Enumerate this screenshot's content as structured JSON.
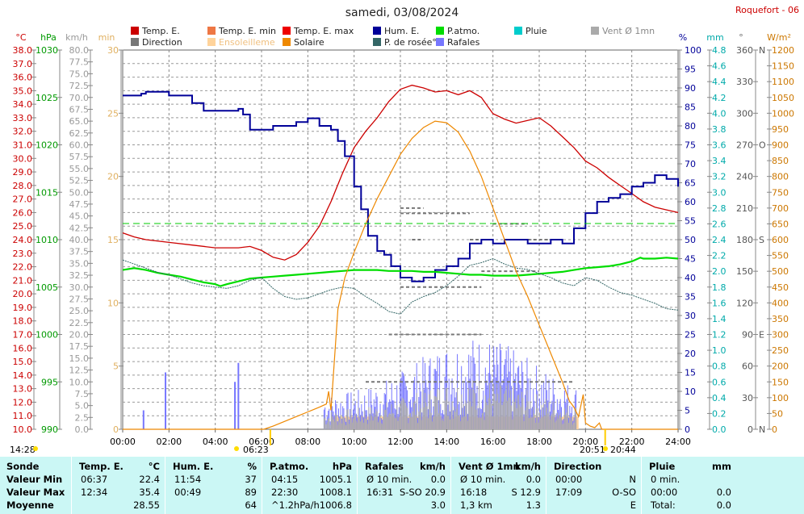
{
  "title": "samedi, 03/08/2024",
  "station": "Roquefort - 06",
  "colors": {
    "temp": "#cc0000",
    "temp_min": "#ee7744",
    "temp_max": "#ee0000",
    "direction": "#777777",
    "sunshine": "#ffd39b",
    "solar": "#ee8800",
    "humidity": "#000099",
    "pressure": "#00dd00",
    "dew_point": "#336666",
    "rain": "#00cccc",
    "wind": "#aaaaaa",
    "gusts": "#7777ff"
  },
  "legend": [
    {
      "label": "Temp. E.",
      "color": "#cc0000"
    },
    {
      "label": "Temp. E. min",
      "color": "#ee7744"
    },
    {
      "label": "Temp. E. max",
      "color": "#ee0000"
    },
    {
      "label": "Hum. E.",
      "color": "#000099"
    },
    {
      "label": "P.atmo.",
      "color": "#00dd00"
    },
    {
      "label": "Pluie",
      "color": "#00cccc"
    },
    {
      "label": "Vent Ø 1mn",
      "color": "#aaaaaa"
    },
    {
      "label": "Direction",
      "color": "#777777"
    },
    {
      "label": "Ensoleilleme",
      "color": "#ffd39b"
    },
    {
      "label": "Solaire",
      "color": "#ee8800"
    },
    {
      "label": "P. de rosée°",
      "color": "#336666"
    },
    {
      "label": "Rafales",
      "color": "#7777ff"
    }
  ],
  "axis_units": {
    "temp": "°C",
    "pressure": "hPa",
    "wind": "km/h",
    "sunshine": "min",
    "humidity": "%",
    "rain": "mm",
    "direction": "°",
    "solar": "W/m²"
  },
  "sun": {
    "sunrise": "06:23",
    "sunset": "20:51",
    "left_marker": "14:28",
    "right_marker": "20:44"
  },
  "chart_data": {
    "type": "line",
    "x_ticks": [
      "00:00",
      "02:00",
      "04:00",
      "06:00",
      "08:00",
      "10:00",
      "12:00",
      "14:00",
      "16:00",
      "18:00",
      "20:00",
      "22:00",
      "24:00"
    ],
    "axes": {
      "temp": {
        "min": 10.0,
        "max": 38.0,
        "step": 1.0
      },
      "pressure": {
        "min": 990,
        "max": 1030,
        "step": 5
      },
      "wind": {
        "min": 0.0,
        "max": 80.0,
        "step": 2.5
      },
      "sunshine": {
        "min": 0,
        "max": 30,
        "step": 5
      },
      "humidity": {
        "min": 0,
        "max": 100,
        "step": 5
      },
      "rain": {
        "min": 0.0,
        "max": 4.8,
        "step": 0.2
      },
      "direction": {
        "min": 0,
        "max": 360,
        "step": 30,
        "labels": {
          "0": "N",
          "90": "E",
          "180": "S",
          "270": "O",
          "360": "N"
        }
      },
      "solar": {
        "min": 0,
        "max": 1200,
        "step": 50
      }
    },
    "series": [
      {
        "name": "Temp. E.",
        "axis": "temp",
        "x": [
          0,
          0.5,
          1,
          2,
          3,
          4,
          5,
          5.5,
          6,
          6.5,
          7,
          7.5,
          8,
          8.5,
          9,
          9.5,
          10,
          10.5,
          11,
          11.5,
          12,
          12.5,
          13,
          13.5,
          14,
          14.5,
          15,
          15.5,
          16,
          16.5,
          17,
          17.5,
          18,
          18.5,
          19,
          19.5,
          20,
          20.5,
          21,
          21.5,
          22,
          22.5,
          23,
          23.5,
          24
        ],
        "y": [
          24.5,
          24.2,
          24.0,
          23.8,
          23.6,
          23.4,
          23.4,
          23.5,
          23.2,
          22.7,
          22.5,
          22.9,
          23.8,
          25.0,
          26.8,
          28.9,
          30.8,
          32.0,
          33.0,
          34.2,
          35.1,
          35.4,
          35.2,
          34.9,
          35.0,
          34.7,
          35.0,
          34.5,
          33.3,
          32.9,
          32.6,
          32.8,
          33.0,
          32.4,
          31.6,
          30.8,
          29.8,
          29.3,
          28.6,
          28.0,
          27.4,
          26.8,
          26.4,
          26.2,
          26.0
        ]
      },
      {
        "name": "Hum. E.",
        "axis": "humidity",
        "x": [
          0,
          0.5,
          0.8,
          1,
          1.5,
          2,
          2.5,
          3,
          3.5,
          4,
          4.5,
          5,
          5.2,
          5.5,
          6,
          6.5,
          7,
          7.5,
          8,
          8.5,
          9,
          9.3,
          9.6,
          10,
          10.3,
          10.6,
          11,
          11.3,
          11.6,
          12,
          12.5,
          13,
          13.5,
          14,
          14.5,
          15,
          15.5,
          16,
          16.5,
          17,
          17.5,
          18,
          18.5,
          19,
          19.5,
          20,
          20.5,
          21,
          21.5,
          22,
          22.5,
          23,
          23.5,
          24
        ],
        "y": [
          88,
          88,
          88.5,
          89,
          89,
          88,
          88,
          86,
          84,
          84,
          84,
          84.5,
          83,
          79,
          79,
          80,
          80,
          81,
          82,
          80,
          79,
          76,
          72,
          64,
          58,
          51,
          47,
          46,
          43,
          40,
          39,
          40,
          42,
          43,
          45,
          49,
          50,
          49,
          50,
          50,
          49,
          49,
          50,
          49,
          53,
          57,
          60,
          61,
          62,
          64,
          65,
          67,
          66,
          64
        ]
      },
      {
        "name": "P.atmo.",
        "axis": "pressure",
        "x": [
          0,
          0.5,
          1,
          1.5,
          2,
          2.5,
          3,
          3.5,
          4,
          4.22,
          4.5,
          5,
          5.5,
          6,
          6.5,
          7,
          7.5,
          8,
          8.5,
          9,
          9.5,
          10,
          10.5,
          11,
          11.5,
          12,
          12.5,
          13,
          13.5,
          14,
          14.5,
          15,
          15.5,
          16,
          16.5,
          17,
          17.5,
          18,
          18.5,
          19,
          19.5,
          20,
          20.5,
          21,
          21.5,
          22,
          22.37,
          22.5,
          23,
          23.5,
          24
        ],
        "y": [
          1006.8,
          1007.0,
          1006.8,
          1006.5,
          1006.3,
          1006.1,
          1005.8,
          1005.5,
          1005.3,
          1005.1,
          1005.3,
          1005.6,
          1005.9,
          1006.0,
          1006.1,
          1006.2,
          1006.3,
          1006.4,
          1006.5,
          1006.6,
          1006.7,
          1006.8,
          1006.8,
          1006.8,
          1006.7,
          1006.7,
          1006.7,
          1006.6,
          1006.6,
          1006.5,
          1006.4,
          1006.3,
          1006.3,
          1006.2,
          1006.2,
          1006.2,
          1006.3,
          1006.4,
          1006.5,
          1006.6,
          1006.8,
          1007.0,
          1007.1,
          1007.2,
          1007.4,
          1007.7,
          1008.1,
          1008.0,
          1008.0,
          1008.1,
          1008.0
        ]
      },
      {
        "name": "P. de rosée°",
        "axis": "temp",
        "x": [
          0,
          0.5,
          1,
          1.5,
          2,
          2.5,
          3,
          3.5,
          4,
          4.5,
          5,
          5.5,
          6,
          6.5,
          7,
          7.5,
          8,
          8.5,
          9,
          9.5,
          10,
          10.5,
          11,
          11.5,
          12,
          12.5,
          13,
          13.5,
          14,
          14.5,
          15,
          15.5,
          16,
          16.5,
          17,
          17.5,
          18,
          18.5,
          19,
          19.5,
          20,
          20.5,
          21,
          21.5,
          22,
          22.5,
          23,
          23.5,
          24
        ],
        "y": [
          22.5,
          22.2,
          21.9,
          21.6,
          21.4,
          21.1,
          20.8,
          20.6,
          20.5,
          20.4,
          20.6,
          21.0,
          21.2,
          20.4,
          19.8,
          19.6,
          19.7,
          20.0,
          20.3,
          20.5,
          20.4,
          19.8,
          19.3,
          18.7,
          18.5,
          19.4,
          19.8,
          20.1,
          20.6,
          21.3,
          22.1,
          22.3,
          22.6,
          22.2,
          21.9,
          21.8,
          21.5,
          21.2,
          20.8,
          20.6,
          21.2,
          21.0,
          20.5,
          20.1,
          19.9,
          19.6,
          19.3,
          18.9,
          18.8
        ]
      },
      {
        "name": "Solaire",
        "axis": "solar",
        "x": [
          0,
          6.1,
          6.5,
          7,
          7.5,
          8,
          8.5,
          8.8,
          8.9,
          9.0,
          9.3,
          9.6,
          10,
          10.5,
          11,
          11.5,
          12,
          12.5,
          13,
          13.5,
          14,
          14.5,
          15,
          15.5,
          16,
          16.5,
          17,
          17.5,
          18,
          18.5,
          19,
          19.3,
          19.5,
          19.7,
          19.9,
          20.0,
          20.1,
          20.2,
          20.4,
          20.6,
          20.7,
          24
        ],
        "y": [
          0,
          0,
          10,
          25,
          40,
          55,
          70,
          80,
          120,
          60,
          380,
          480,
          560,
          650,
          730,
          800,
          870,
          920,
          955,
          975,
          970,
          940,
          880,
          800,
          700,
          600,
          500,
          420,
          330,
          240,
          150,
          90,
          70,
          40,
          110,
          20,
          15,
          10,
          5,
          20,
          0,
          0
        ]
      }
    ],
    "gusts_range": {
      "axis": "wind",
      "x_from": 8.7,
      "x_to": 19.6,
      "max": 20.9
    },
    "direction_segments": {
      "axis": "direction",
      "values": [
        45,
        90,
        135,
        150,
        180,
        195,
        205,
        210
      ]
    }
  },
  "table": {
    "columns": [
      {
        "key": "sonde",
        "header": "Sonde",
        "unit": "",
        "rows": [
          "Valeur Min",
          "Valeur Max",
          "Moyenne"
        ]
      },
      {
        "key": "temp",
        "header": "Temp. E.",
        "unit": "°C",
        "rows": [
          {
            "time": "06:37",
            "value": "22.4"
          },
          {
            "time": "12:34",
            "value": "35.4"
          },
          {
            "time": "",
            "value": "28.55"
          }
        ]
      },
      {
        "key": "hum",
        "header": "Hum. E.",
        "unit": "%",
        "rows": [
          {
            "time": "11:54",
            "value": "37"
          },
          {
            "time": "00:49",
            "value": "89"
          },
          {
            "time": "",
            "value": "64"
          }
        ]
      },
      {
        "key": "patmo",
        "header": "P.atmo.",
        "unit": "hPa",
        "rows": [
          {
            "time": "04:15",
            "value": "1005.1"
          },
          {
            "time": "22:30",
            "value": "1008.1"
          },
          {
            "time": "^1.2hPa/h",
            "value": "1006.8"
          }
        ]
      },
      {
        "key": "rafales",
        "header": "Rafales",
        "unit": "km/h",
        "rows": [
          {
            "time": "Ø 10 min.",
            "value": "0.0"
          },
          {
            "time": "16:31",
            "value": "S-SO 20.9"
          },
          {
            "time": "",
            "value": "3.0"
          }
        ]
      },
      {
        "key": "vent",
        "header": "Vent Ø 1mn",
        "unit": "km/h",
        "rows": [
          {
            "time": "Ø 10 min.",
            "value": "0.0"
          },
          {
            "time": "16:18",
            "value": "S 12.9"
          },
          {
            "time": "1,3 km",
            "value": "1.3"
          }
        ]
      },
      {
        "key": "dir",
        "header": "Direction",
        "unit": "",
        "rows": [
          {
            "time": "00:00",
            "value": "N"
          },
          {
            "time": "17:09",
            "value": "O-SO"
          },
          {
            "time": "",
            "value": "E"
          }
        ]
      },
      {
        "key": "pluie",
        "header": "Pluie",
        "unit": "mm",
        "rows": [
          {
            "time": "0 min.",
            "value": ""
          },
          {
            "time": "00:00",
            "value": "0.0"
          },
          {
            "time": "Total:",
            "value": "0.0"
          }
        ]
      }
    ]
  }
}
